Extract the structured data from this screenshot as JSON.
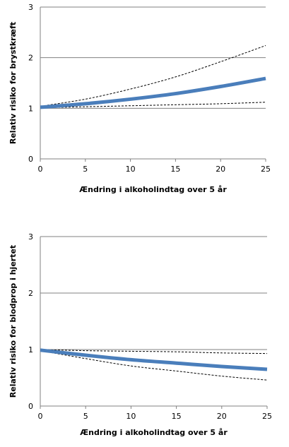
{
  "chart_data": [
    {
      "type": "line",
      "xlabel": "Ændring i alkoholindtag over 5 år",
      "ylabel": "Relativ risiko for brystkræft",
      "xlim": [
        0,
        25
      ],
      "ylim": [
        0,
        3
      ],
      "xticks": [
        "0",
        "5",
        "10",
        "15",
        "20",
        "25"
      ],
      "yticks": [
        "0",
        "1",
        "2",
        "3"
      ],
      "grid": "horizontal",
      "series": [
        {
          "role": "estimate",
          "color": "#4a7ebb",
          "style": "solid-thick",
          "x": [
            0,
            5,
            10,
            15,
            20,
            25
          ],
          "values": [
            1.02,
            1.09,
            1.18,
            1.29,
            1.43,
            1.59
          ]
        },
        {
          "role": "upper",
          "color": "#000000",
          "style": "dashed",
          "x": [
            0,
            5,
            10,
            15,
            20,
            25
          ],
          "values": [
            1.04,
            1.18,
            1.38,
            1.62,
            1.92,
            2.24
          ]
        },
        {
          "role": "lower",
          "color": "#000000",
          "style": "dashed",
          "x": [
            0,
            5,
            10,
            15,
            20,
            25
          ],
          "values": [
            1.01,
            1.03,
            1.05,
            1.07,
            1.09,
            1.12
          ]
        }
      ]
    },
    {
      "type": "line",
      "xlabel": "Ændring i alkoholindtag over 5 år",
      "ylabel": "Relativ risiko for blodprop i hjertet",
      "xlim": [
        0,
        25
      ],
      "ylim": [
        0,
        3
      ],
      "xticks": [
        "0",
        "5",
        "10",
        "15",
        "20",
        "25"
      ],
      "yticks": [
        "0",
        "1",
        "2",
        "3"
      ],
      "grid": "horizontal",
      "series": [
        {
          "role": "estimate",
          "color": "#4a7ebb",
          "style": "solid-thick",
          "x": [
            0,
            5,
            10,
            15,
            20,
            25
          ],
          "values": [
            0.99,
            0.9,
            0.82,
            0.76,
            0.7,
            0.65
          ]
        },
        {
          "role": "upper",
          "color": "#000000",
          "style": "dashed",
          "x": [
            0,
            5,
            10,
            15,
            20,
            25
          ],
          "values": [
            1.0,
            0.98,
            0.97,
            0.96,
            0.94,
            0.93
          ]
        },
        {
          "role": "lower",
          "color": "#000000",
          "style": "dashed",
          "x": [
            0,
            5,
            10,
            15,
            20,
            25
          ],
          "values": [
            0.98,
            0.84,
            0.71,
            0.62,
            0.53,
            0.46
          ]
        }
      ]
    }
  ]
}
